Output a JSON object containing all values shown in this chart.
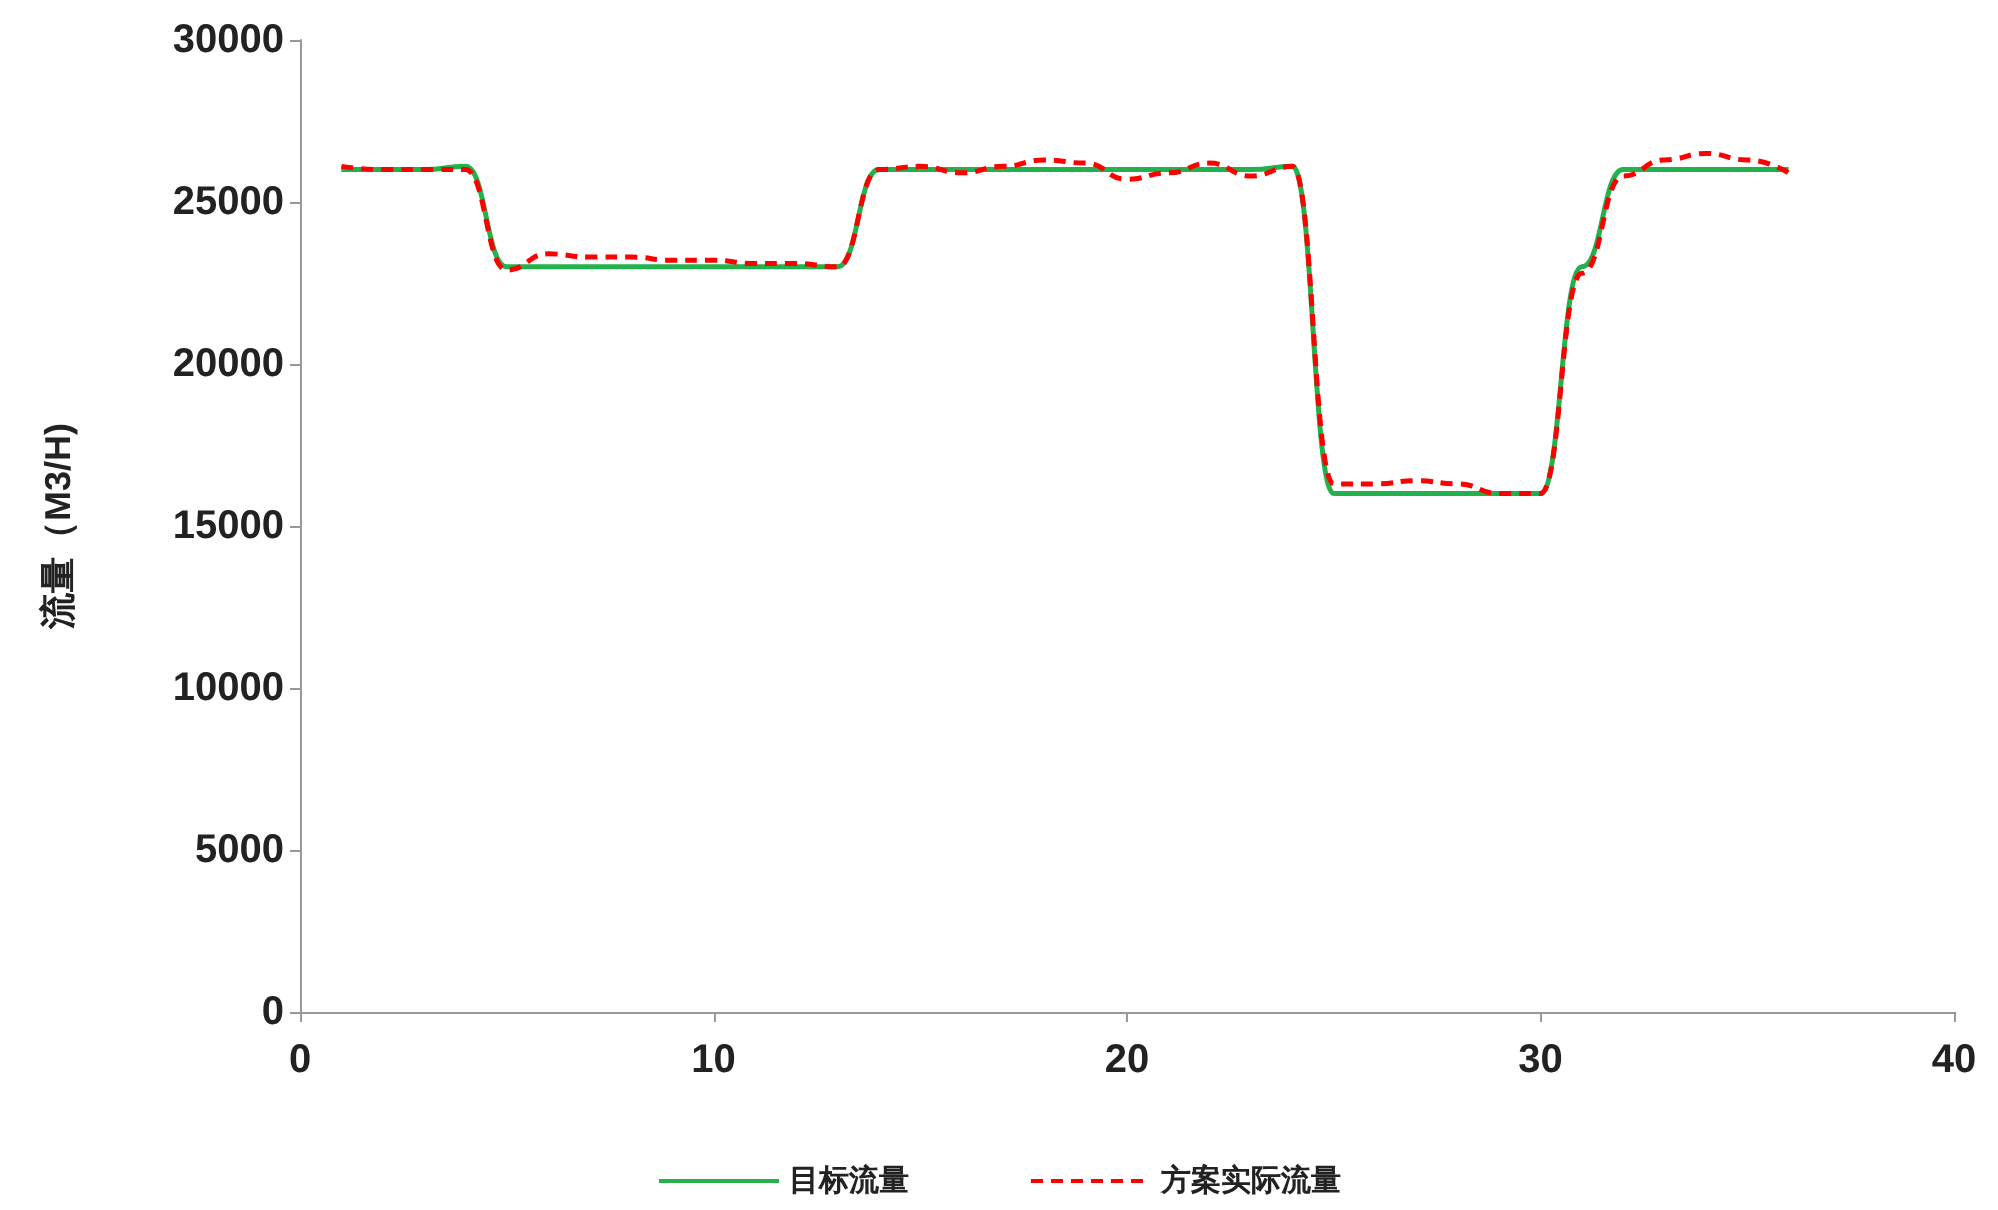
{
  "chart_data": {
    "type": "line",
    "ylabel": "流量（M3/H)",
    "x": [
      1,
      2,
      3,
      4,
      5,
      6,
      7,
      8,
      9,
      10,
      11,
      12,
      13,
      14,
      15,
      16,
      17,
      18,
      19,
      20,
      21,
      22,
      23,
      24,
      25,
      26,
      27,
      28,
      29,
      30,
      31,
      32,
      33,
      34,
      35,
      36
    ],
    "series": [
      {
        "name": "目标流量",
        "color": "#22b14c",
        "line_style": "solid",
        "values": [
          26000,
          26000,
          26000,
          26100,
          23000,
          23000,
          23000,
          23000,
          23000,
          23000,
          23000,
          23000,
          23000,
          26000,
          26000,
          26000,
          26000,
          26000,
          26000,
          26000,
          26000,
          26000,
          26000,
          26100,
          16000,
          16000,
          16000,
          16000,
          16000,
          16000,
          23000,
          26000,
          26000,
          26000,
          26000,
          26000
        ]
      },
      {
        "name": "方案实际流量",
        "color": "#ff0000",
        "line_style": "dashed",
        "values": [
          26100,
          26000,
          26000,
          26000,
          22900,
          23400,
          23300,
          23300,
          23200,
          23200,
          23100,
          23100,
          23000,
          26000,
          26100,
          25900,
          26100,
          26300,
          26200,
          25700,
          25900,
          26200,
          25800,
          26100,
          16300,
          16300,
          16400,
          16300,
          16000,
          16000,
          22800,
          25800,
          26300,
          26500,
          26300,
          25900
        ]
      }
    ],
    "xlim": [
      0,
      40
    ],
    "xticks": [
      0,
      10,
      20,
      30,
      40
    ],
    "ylim": [
      0,
      30000
    ],
    "yticks": [
      0,
      5000,
      10000,
      15000,
      20000,
      25000,
      30000
    ],
    "legend": "bottom",
    "marker": "none",
    "grid": false
  }
}
